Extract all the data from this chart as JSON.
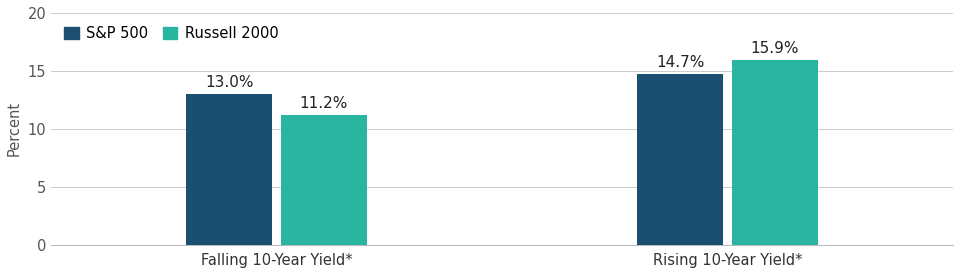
{
  "groups": [
    "Falling 10-Year Yield*",
    "Rising 10-Year Yield*"
  ],
  "series": [
    {
      "label": "S&P 500",
      "color": "#1b4f72",
      "values": [
        13.0,
        14.7
      ]
    },
    {
      "label": "Russell 2000",
      "color": "#2ab5a0",
      "values": [
        11.2,
        15.9
      ]
    }
  ],
  "bar_labels": [
    [
      "13.0%",
      "11.2%"
    ],
    [
      "14.7%",
      "15.9%"
    ]
  ],
  "ylabel": "Percent",
  "ylim": [
    0,
    20
  ],
  "yticks": [
    0,
    5,
    10,
    15,
    20
  ],
  "bar_width": 0.38,
  "group_centers": [
    1.0,
    3.0
  ],
  "label_fontsize": 11,
  "tick_fontsize": 10.5,
  "ylabel_fontsize": 10.5,
  "legend_fontsize": 10.5,
  "background_color": "#ffffff"
}
